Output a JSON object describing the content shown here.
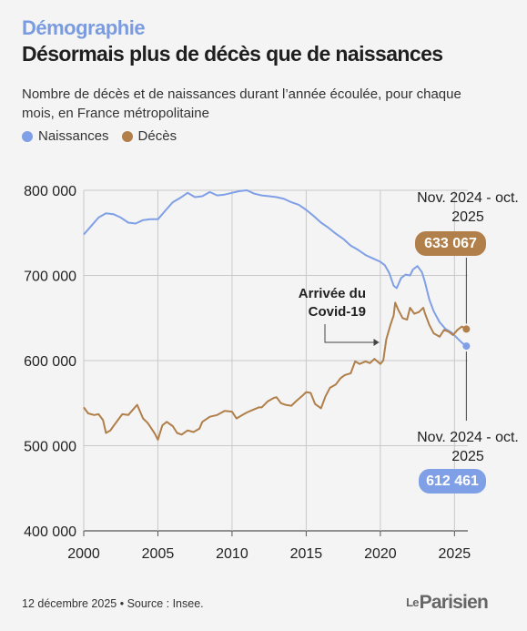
{
  "header": {
    "kicker": "Démographie",
    "title": "Désormais plus de décès que de naissances",
    "subtitle": "Nombre de décès et de naissances durant l’année écoulée, pour chaque mois, en France métropolitaine"
  },
  "legend": {
    "items": [
      {
        "label": "Naissances",
        "color": "#7f9fe6"
      },
      {
        "label": "Décès",
        "color": "#b07f4a"
      }
    ]
  },
  "annotations": {
    "covid": "Arrivée du Covid-19",
    "deces_period": "Nov. 2024 - oct. 2025",
    "deces_value": "633 067",
    "naissances_period": "Nov. 2024 - oct. 2025",
    "naissances_value": "612 461"
  },
  "footer": {
    "note": "12 décembre 2025 • Source : Insee.",
    "logo_le": "Le",
    "logo_name": "Parisien"
  },
  "chart_data": {
    "type": "line",
    "xlabel": "",
    "ylabel": "",
    "xlim": [
      2000,
      2025.9
    ],
    "ylim": [
      400000,
      800000
    ],
    "x_ticks": [
      2000,
      2005,
      2010,
      2015,
      2020,
      2025
    ],
    "y_ticks": [
      400000,
      500000,
      600000,
      700000,
      800000
    ],
    "y_tick_labels": [
      "400 000",
      "500 000",
      "600 000",
      "700 000",
      "800 000"
    ],
    "grid": true,
    "series": [
      {
        "name": "Naissances",
        "color": "#7f9fe6",
        "points": [
          [
            2000,
            748000
          ],
          [
            2000.5,
            758000
          ],
          [
            2001,
            768000
          ],
          [
            2001.5,
            773000
          ],
          [
            2002,
            772000
          ],
          [
            2002.5,
            768000
          ],
          [
            2003,
            762000
          ],
          [
            2003.5,
            761000
          ],
          [
            2004,
            765000
          ],
          [
            2004.5,
            766000
          ],
          [
            2005,
            766000
          ],
          [
            2005.5,
            776000
          ],
          [
            2006,
            786000
          ],
          [
            2006.5,
            791000
          ],
          [
            2007,
            797000
          ],
          [
            2007.5,
            792000
          ],
          [
            2008,
            793000
          ],
          [
            2008.5,
            798000
          ],
          [
            2009,
            794000
          ],
          [
            2009.5,
            795000
          ],
          [
            2010,
            797000
          ],
          [
            2010.5,
            799000
          ],
          [
            2011,
            800000
          ],
          [
            2011.5,
            796000
          ],
          [
            2012,
            794000
          ],
          [
            2012.5,
            793000
          ],
          [
            2013,
            792000
          ],
          [
            2013.5,
            790000
          ],
          [
            2014,
            786000
          ],
          [
            2014.5,
            783000
          ],
          [
            2015,
            777000
          ],
          [
            2015.5,
            770000
          ],
          [
            2016,
            762000
          ],
          [
            2016.5,
            756000
          ],
          [
            2017,
            749000
          ],
          [
            2017.5,
            743000
          ],
          [
            2018,
            735000
          ],
          [
            2018.5,
            730000
          ],
          [
            2019,
            724000
          ],
          [
            2019.5,
            720000
          ],
          [
            2020,
            716000
          ],
          [
            2020.3,
            712000
          ],
          [
            2020.6,
            703000
          ],
          [
            2020.9,
            688000
          ],
          [
            2021.1,
            685000
          ],
          [
            2021.4,
            697000
          ],
          [
            2021.7,
            701000
          ],
          [
            2022,
            700000
          ],
          [
            2022.2,
            707000
          ],
          [
            2022.5,
            711000
          ],
          [
            2022.8,
            704000
          ],
          [
            2023,
            693000
          ],
          [
            2023.3,
            672000
          ],
          [
            2023.6,
            658000
          ],
          [
            2024,
            645000
          ],
          [
            2024.4,
            637000
          ],
          [
            2024.8,
            633000
          ],
          [
            2025.2,
            626000
          ],
          [
            2025.5,
            621000
          ],
          [
            2025.8,
            617000
          ]
        ],
        "end_value": 612461
      },
      {
        "name": "Décès",
        "color": "#b07f4a",
        "points": [
          [
            2000,
            545000
          ],
          [
            2000.3,
            538000
          ],
          [
            2000.7,
            536000
          ],
          [
            2001,
            537000
          ],
          [
            2001.3,
            530000
          ],
          [
            2001.5,
            515000
          ],
          [
            2001.8,
            518000
          ],
          [
            2002,
            523000
          ],
          [
            2002.3,
            530000
          ],
          [
            2002.6,
            537000
          ],
          [
            2003,
            536000
          ],
          [
            2003.3,
            542000
          ],
          [
            2003.6,
            548000
          ],
          [
            2004,
            532000
          ],
          [
            2004.3,
            527000
          ],
          [
            2004.5,
            522000
          ],
          [
            2004.8,
            514000
          ],
          [
            2005,
            507000
          ],
          [
            2005.3,
            524000
          ],
          [
            2005.6,
            528000
          ],
          [
            2006,
            523000
          ],
          [
            2006.3,
            515000
          ],
          [
            2006.6,
            513000
          ],
          [
            2007,
            518000
          ],
          [
            2007.4,
            516000
          ],
          [
            2007.8,
            520000
          ],
          [
            2008,
            528000
          ],
          [
            2008.5,
            534000
          ],
          [
            2009,
            536000
          ],
          [
            2009.5,
            541000
          ],
          [
            2010,
            540000
          ],
          [
            2010.3,
            532000
          ],
          [
            2010.7,
            536000
          ],
          [
            2011,
            539000
          ],
          [
            2011.4,
            542000
          ],
          [
            2011.8,
            545000
          ],
          [
            2012,
            545000
          ],
          [
            2012.4,
            552000
          ],
          [
            2012.8,
            556000
          ],
          [
            2013,
            557000
          ],
          [
            2013.3,
            550000
          ],
          [
            2013.6,
            548000
          ],
          [
            2014,
            547000
          ],
          [
            2014.3,
            552000
          ],
          [
            2014.7,
            558000
          ],
          [
            2015,
            563000
          ],
          [
            2015.3,
            562000
          ],
          [
            2015.6,
            549000
          ],
          [
            2016,
            544000
          ],
          [
            2016.3,
            558000
          ],
          [
            2016.6,
            568000
          ],
          [
            2017,
            572000
          ],
          [
            2017.3,
            579000
          ],
          [
            2017.6,
            583000
          ],
          [
            2018,
            585000
          ],
          [
            2018.3,
            599000
          ],
          [
            2018.6,
            596000
          ],
          [
            2019,
            599000
          ],
          [
            2019.3,
            597000
          ],
          [
            2019.6,
            602000
          ],
          [
            2020,
            596000
          ],
          [
            2020.2,
            600000
          ],
          [
            2020.4,
            625000
          ],
          [
            2020.7,
            643000
          ],
          [
            2020.9,
            653000
          ],
          [
            2021,
            668000
          ],
          [
            2021.2,
            660000
          ],
          [
            2021.5,
            650000
          ],
          [
            2021.8,
            648000
          ],
          [
            2022,
            662000
          ],
          [
            2022.3,
            655000
          ],
          [
            2022.6,
            657000
          ],
          [
            2022.9,
            662000
          ],
          [
            2023,
            656000
          ],
          [
            2023.3,
            642000
          ],
          [
            2023.6,
            632000
          ],
          [
            2024,
            628000
          ],
          [
            2024.3,
            636000
          ],
          [
            2024.6,
            634000
          ],
          [
            2024.9,
            630000
          ],
          [
            2025.2,
            636000
          ],
          [
            2025.5,
            640000
          ],
          [
            2025.8,
            637000
          ]
        ],
        "end_value": 633067
      }
    ],
    "markers": [
      {
        "x": 2020.1,
        "label": "Arrivée du Covid-19"
      }
    ]
  }
}
